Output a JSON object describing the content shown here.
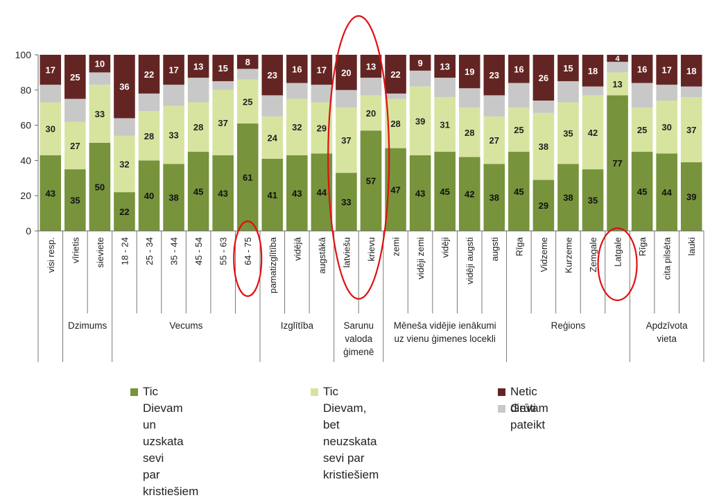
{
  "chart_data": {
    "type": "bar",
    "stacked": true,
    "ylim": [
      0,
      100
    ],
    "yticks": [
      "0",
      "20",
      "40",
      "60",
      "80",
      "100"
    ],
    "categories": [
      "visi resp.",
      "vīrietis",
      "sieviete",
      "18 - 24",
      "25 - 34",
      "35 - 44",
      "45 - 54",
      "55 - 63",
      "64 - 75",
      "pamatizglītība",
      "vidējā",
      "augstākā",
      "latviešu",
      "krievu",
      "zemi",
      "vidēji zemi",
      "vidēji",
      "vidēji augsti",
      "augsti",
      "Rīga",
      "Vidzeme",
      "Kurzeme",
      "Zemgale",
      "Latgale",
      "Rīga",
      "cita pilsēta",
      "lauki"
    ],
    "groups": [
      {
        "label": "",
        "start": 0,
        "end": 0
      },
      {
        "label": "Dzimums",
        "start": 1,
        "end": 2
      },
      {
        "label": "Vecums",
        "start": 3,
        "end": 8
      },
      {
        "label": "Izglītība",
        "start": 9,
        "end": 11
      },
      {
        "label": "Sarunu\nvaloda\nģimenē",
        "start": 12,
        "end": 13
      },
      {
        "label": "Mēneša vidējie ienākumi\nuz vienu ģimenes locekli",
        "start": 14,
        "end": 18
      },
      {
        "label": "Reģions",
        "start": 19,
        "end": 23
      },
      {
        "label": "Apdzīvota\nvieta",
        "start": 24,
        "end": 26
      }
    ],
    "series": [
      {
        "name": "Tic Dievam un uzskata sevi par kristiešiem",
        "color": "#77933c",
        "values": [
          43,
          35,
          50,
          22,
          40,
          38,
          45,
          43,
          61,
          41,
          43,
          44,
          33,
          57,
          47,
          43,
          45,
          42,
          38,
          45,
          29,
          38,
          35,
          77,
          45,
          44,
          39
        ]
      },
      {
        "name": "Tic Dievam, bet neuzskata sevi par kristiešiem",
        "color": "#d7e4a0",
        "values": [
          30,
          27,
          33,
          32,
          28,
          33,
          28,
          37,
          25,
          24,
          32,
          29,
          37,
          20,
          28,
          39,
          31,
          28,
          27,
          25,
          38,
          35,
          42,
          13,
          25,
          30,
          37
        ]
      },
      {
        "name": "Grūti pateikt",
        "color": "#c8c8c8",
        "values": [
          10,
          13,
          7,
          10,
          10,
          12,
          14,
          5,
          6,
          12,
          9,
          10,
          10,
          10,
          3,
          9,
          11,
          11,
          12,
          14,
          7,
          12,
          5,
          6,
          14,
          9,
          6
        ]
      },
      {
        "name": "Netic dievam",
        "color": "#632523",
        "values": [
          17,
          25,
          10,
          36,
          22,
          17,
          13,
          15,
          8,
          23,
          16,
          17,
          20,
          13,
          22,
          9,
          13,
          19,
          23,
          16,
          26,
          15,
          18,
          4,
          16,
          17,
          18
        ]
      }
    ],
    "legend": [
      {
        "series": 0,
        "label": "Tic Dievam un uzskata sevi\npar kristiešiem"
      },
      {
        "series": 1,
        "label": "Tic Dievam, bet neuzskata\nsevi par kristiešiem"
      },
      {
        "series": 3,
        "label": "Netic dievam"
      },
      {
        "series": 2,
        "label": "Grūti pateikt"
      }
    ],
    "legend_position": "bottom",
    "grid": false,
    "highlighted_categories": [
      8,
      12,
      13,
      23
    ]
  }
}
